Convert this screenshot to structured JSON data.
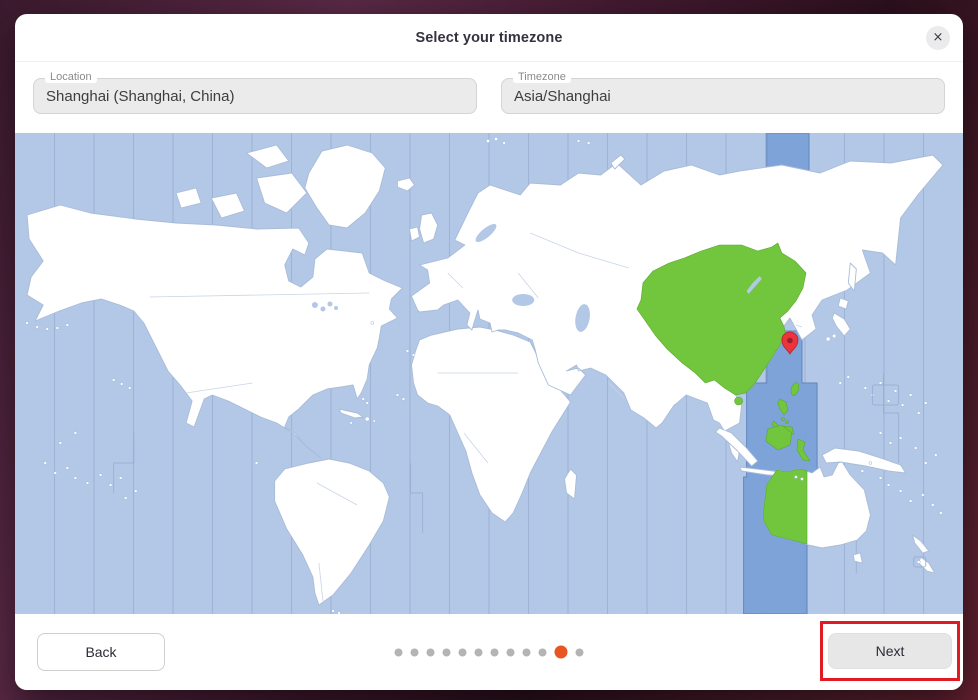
{
  "window": {
    "title": "Select your timezone",
    "close_icon": "×"
  },
  "fields": {
    "location": {
      "label": "Location",
      "value": "Shanghai (Shanghai, China)"
    },
    "timezone": {
      "label": "Timezone",
      "value": "Asia/Shanghai"
    }
  },
  "map": {
    "pin_icon": "map-pin",
    "selected_zone_color_hint": "green region + blue UTC+8 band"
  },
  "footer": {
    "back_label": "Back",
    "next_label": "Next",
    "pagination": {
      "total_dots": 12,
      "active_dot_index": 10
    }
  },
  "annotation": {
    "highlight_target": "next-button",
    "color": "#e01b24"
  },
  "colors": {
    "highlight_green": "#72c63e",
    "timezone_band_blue": "#7ba2d8",
    "ocean_blue": "#b3c7e6",
    "pin_red": "#ed333b",
    "active_dot_orange": "#e95420",
    "annotation_red": "#e01b24"
  }
}
